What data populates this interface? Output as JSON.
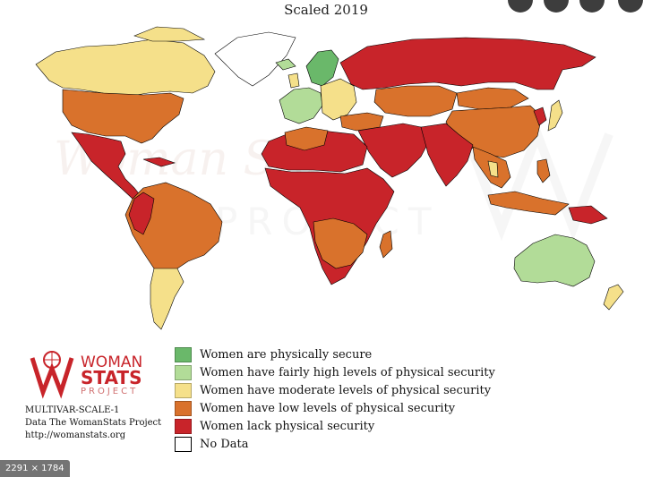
{
  "title": "Scaled 2019",
  "colors": {
    "secure": "#6ab86a",
    "fairly_high": "#b2dc98",
    "moderate": "#f5e08a",
    "low": "#d9722c",
    "lack": "#c8242a",
    "no_data": "#ffffff"
  },
  "legend": [
    {
      "label": "Women are physically secure",
      "color": "#6ab86a"
    },
    {
      "label": "Women have fairly high levels of physical security",
      "color": "#b2dc98"
    },
    {
      "label": "Women have moderate levels of physical security",
      "color": "#f5e08a"
    },
    {
      "label": "Women have low levels of physical security",
      "color": "#d9722c"
    },
    {
      "label": "Women lack physical security",
      "color": "#c8242a"
    },
    {
      "label": "No Data",
      "color": "#ffffff"
    }
  ],
  "logo": {
    "line1": "WOMAN",
    "line2": "STATS",
    "line3": "PROJECT"
  },
  "watermark": {
    "line2": "PROJECT"
  },
  "credits": {
    "code": "MULTIVAR-SCALE-1",
    "data": "Data The WomanStats Project",
    "url": "http://womanstats.org"
  },
  "image_size_badge": "2291 × 1784"
}
